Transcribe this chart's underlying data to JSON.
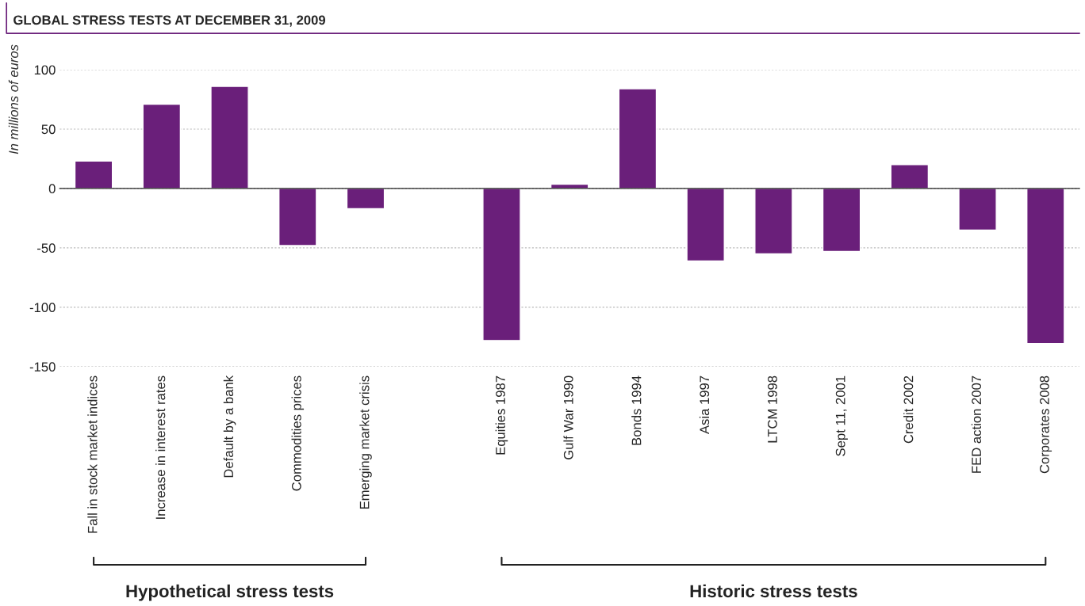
{
  "chart_data": {
    "type": "bar",
    "title": "GLOBAL STRESS TESTS AT DECEMBER 31, 2009",
    "ylabel": "In millions of euros",
    "categories": [
      "Fall in stock market indices",
      "Increase in interest rates",
      "Default by a bank",
      "Commodities prices",
      "Emerging market crisis",
      null,
      "Equities 1987",
      "Gulf War 1990",
      "Bonds 1994",
      "Asia 1997",
      "LTCM 1998",
      "Sept 11, 2001",
      "Credit 2002",
      "FED action 2007",
      "Corporates 2008"
    ],
    "values": [
      23,
      71,
      86,
      -48,
      -17,
      null,
      -128,
      3.5,
      84,
      -61,
      -55,
      -53,
      20,
      -35,
      -130.5
    ],
    "color": "#6a1f7a",
    "ylim": [
      -150,
      100
    ],
    "yticks": [
      -150,
      -100,
      -50,
      0,
      50,
      100
    ],
    "grid": "y",
    "annotations": [
      "Hypothetical stress tests",
      "Historic stress tests"
    ]
  }
}
